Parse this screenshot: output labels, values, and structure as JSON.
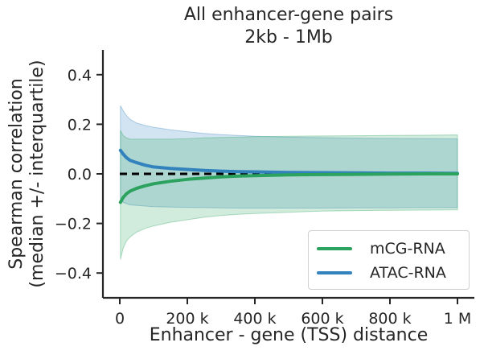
{
  "chart_data": {
    "type": "line",
    "title": "All enhancer-gene pairs",
    "subtitle": "2kb - 1Mb",
    "xlabel": "Enhancer - gene (TSS) distance",
    "ylabel_line1": "Spearman correlation",
    "ylabel_line2": "(median +/- interquartile)",
    "xlim": [
      -50000,
      1050000
    ],
    "ylim": [
      -0.5,
      0.5
    ],
    "x_ticks": [
      0,
      200000,
      400000,
      600000,
      800000,
      1000000
    ],
    "x_tick_labels": [
      "0",
      "200 k",
      "400 k",
      "600 k",
      "800 k",
      "1 M"
    ],
    "y_ticks": [
      -0.4,
      -0.2,
      0.0,
      0.2,
      0.4
    ],
    "y_tick_labels": [
      "−0.4",
      "−0.2",
      "0.0",
      "0.2",
      "0.4"
    ],
    "reference_line": {
      "y": 0,
      "style": "dashed",
      "color": "#000000"
    },
    "legend": {
      "position": "lower-right"
    },
    "series": [
      {
        "name": "mCG-RNA",
        "color": "#2ca25f",
        "x": [
          2000,
          10000,
          20000,
          30000,
          50000,
          75000,
          100000,
          150000,
          200000,
          250000,
          300000,
          350000,
          400000,
          500000,
          600000,
          700000,
          800000,
          900000,
          1000000
        ],
        "median": [
          -0.115,
          -0.095,
          -0.08,
          -0.07,
          -0.058,
          -0.048,
          -0.04,
          -0.03,
          -0.022,
          -0.017,
          -0.012,
          -0.009,
          -0.007,
          -0.004,
          -0.003,
          -0.002,
          -0.001,
          0.0,
          0.0
        ],
        "q1": [
          -0.345,
          -0.3,
          -0.27,
          -0.255,
          -0.235,
          -0.22,
          -0.21,
          -0.195,
          -0.185,
          -0.175,
          -0.168,
          -0.163,
          -0.16,
          -0.155,
          -0.15,
          -0.148,
          -0.147,
          -0.146,
          -0.145
        ],
        "q3": [
          0.175,
          0.155,
          0.145,
          0.14,
          0.14,
          0.14,
          0.14,
          0.14,
          0.142,
          0.145,
          0.147,
          0.148,
          0.15,
          0.152,
          0.153,
          0.154,
          0.155,
          0.156,
          0.157
        ]
      },
      {
        "name": "ATAC-RNA",
        "color": "#3182bd",
        "x": [
          2000,
          10000,
          20000,
          30000,
          50000,
          75000,
          100000,
          150000,
          200000,
          250000,
          300000,
          350000,
          400000,
          500000,
          600000,
          700000,
          800000,
          900000,
          1000000
        ],
        "median": [
          0.095,
          0.08,
          0.065,
          0.055,
          0.045,
          0.035,
          0.028,
          0.022,
          0.018,
          0.014,
          0.011,
          0.009,
          0.008,
          0.006,
          0.005,
          0.004,
          0.003,
          0.003,
          0.002
        ],
        "q1": [
          -0.1,
          -0.115,
          -0.12,
          -0.125,
          -0.127,
          -0.13,
          -0.132,
          -0.134,
          -0.135,
          -0.136,
          -0.137,
          -0.138,
          -0.138,
          -0.138,
          -0.138,
          -0.137,
          -0.137,
          -0.136,
          -0.136
        ],
        "q3": [
          0.275,
          0.255,
          0.235,
          0.22,
          0.205,
          0.195,
          0.188,
          0.178,
          0.17,
          0.163,
          0.158,
          0.155,
          0.152,
          0.148,
          0.146,
          0.144,
          0.143,
          0.142,
          0.141
        ]
      }
    ]
  }
}
